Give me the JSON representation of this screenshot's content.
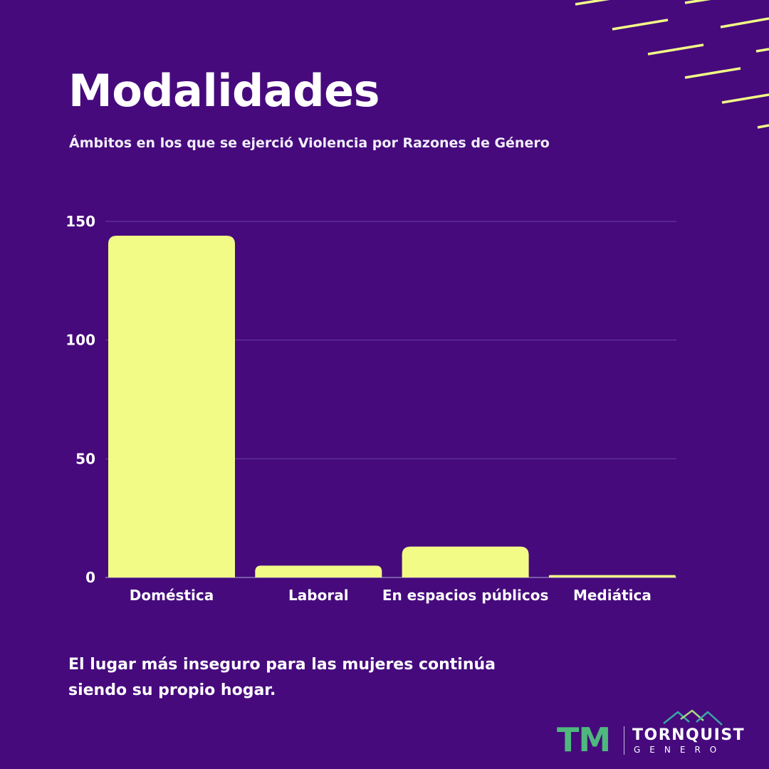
{
  "title": "Modalidades",
  "subtitle": "Ámbitos en los que se ejerció Violencia por Razones de Género",
  "caption_line1": "El lugar más inseguro para las mujeres continúa",
  "caption_line2": "siendo su propio hogar.",
  "logo": {
    "mark": "TM",
    "name": "TORNQUIST",
    "sub": "GENERO",
    "icon": "mountains-icon"
  },
  "colors": {
    "background": "#460a7d",
    "bar": "#f2fb86",
    "decor_lines": "#f2fb86",
    "logo_mark": "#4fb87e"
  },
  "chart_data": {
    "type": "bar",
    "categories": [
      "Doméstica",
      "Laboral",
      "En espacios públicos",
      "Mediática"
    ],
    "values": [
      144,
      5,
      13,
      1
    ],
    "yticks": [
      0,
      50,
      100,
      150
    ],
    "ylim": [
      0,
      150
    ],
    "grid": true,
    "legend": "none",
    "xlabel": "",
    "ylabel": ""
  }
}
